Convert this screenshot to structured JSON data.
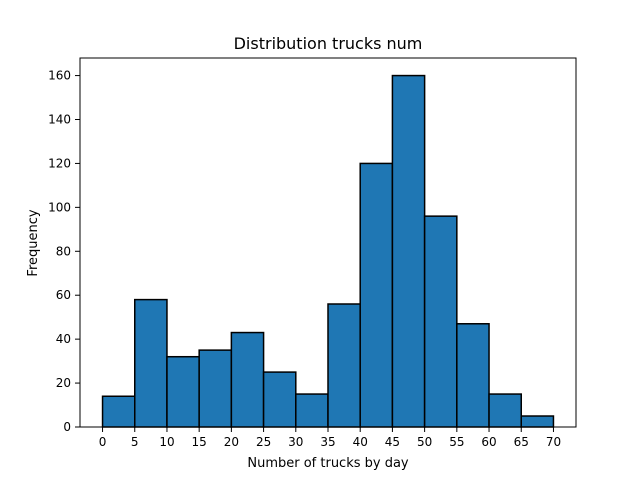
{
  "chart_data": {
    "type": "bar",
    "title": "Distribution trucks num",
    "xlabel": "Number of trucks by day",
    "ylabel": "Frequency",
    "bin_edges": [
      0,
      5,
      10,
      15,
      20,
      25,
      30,
      35,
      40,
      45,
      50,
      55,
      60,
      65,
      70
    ],
    "values": [
      14,
      58,
      32,
      35,
      43,
      25,
      15,
      56,
      120,
      160,
      96,
      47,
      15,
      5
    ],
    "xticks": [
      0,
      5,
      10,
      15,
      20,
      25,
      30,
      35,
      40,
      45,
      50,
      55,
      60,
      65,
      70
    ],
    "yticks": [
      0,
      20,
      40,
      60,
      80,
      100,
      120,
      140,
      160
    ],
    "xlim": [
      -3.5,
      73.5
    ],
    "ylim": [
      0,
      168
    ],
    "bar_color": "#1f77b4",
    "edge_color": "#000000",
    "grid": false
  }
}
